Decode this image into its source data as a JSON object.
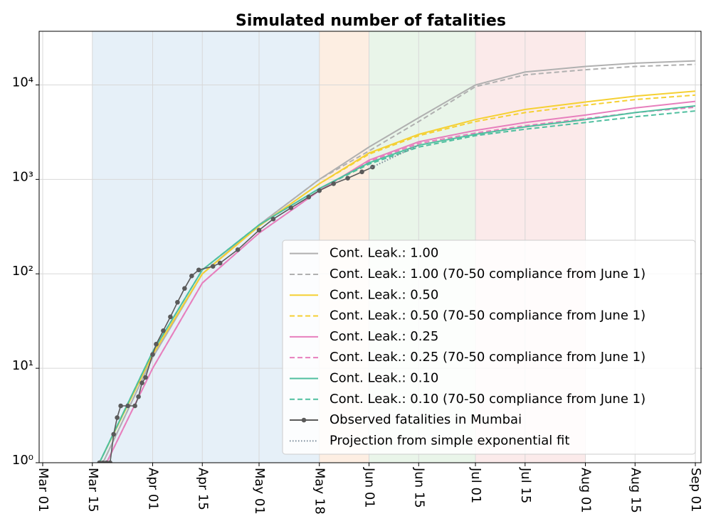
{
  "chart_data": {
    "type": "line",
    "title": "Simulated number of fatalities",
    "log_y": true,
    "grid": true,
    "legend": "lower right",
    "xlim": [
      "Feb 29",
      "Sep 03"
    ],
    "xticks": [
      "Mar 01",
      "Mar 15",
      "Apr 01",
      "Apr 15",
      "May 01",
      "May 18",
      "Jun 01",
      "Jun 15",
      "Jul 01",
      "Jul 15",
      "Aug 01",
      "Aug 15",
      "Sep 01"
    ],
    "ylim": [
      1,
      37000
    ],
    "yticks": [
      {
        "value": 1,
        "label": "10⁰"
      },
      {
        "value": 10,
        "label": "10¹"
      },
      {
        "value": 100,
        "label": "10²"
      },
      {
        "value": 1000,
        "label": "10³"
      },
      {
        "value": 10000,
        "label": "10⁴"
      }
    ],
    "regions": [
      {
        "start": "Mar 15",
        "end": "May 18",
        "color": "#e6f0f8"
      },
      {
        "start": "May 18",
        "end": "Jun 01",
        "color": "#fdeee2"
      },
      {
        "start": "Jun 01",
        "end": "Jul 01",
        "color": "#e9f5e9"
      },
      {
        "start": "Jul 01",
        "end": "Aug 01",
        "color": "#fbeaea"
      }
    ],
    "series": [
      {
        "name": "Cont. Leak.: 1.00",
        "color": "#b0b0b0",
        "linestyle": "solid",
        "x": [
          "Mar 18",
          "Apr 01",
          "Apr 15",
          "May 01",
          "May 18",
          "Jun 01",
          "Jun 15",
          "Jul 01",
          "Jul 15",
          "Aug 01",
          "Aug 15",
          "Sep 01"
        ],
        "values": [
          1,
          13,
          100,
          330,
          1000,
          2200,
          4500,
          10000,
          13700,
          15700,
          17000,
          18000
        ]
      },
      {
        "name": "Cont. Leak.: 1.00 (70-50 compliance from June 1)",
        "color": "#b0b0b0",
        "linestyle": "dashed",
        "x": [
          "Mar 18",
          "Apr 01",
          "Apr 15",
          "May 01",
          "May 18",
          "Jun 01",
          "Jun 15",
          "Jul 01",
          "Jul 15",
          "Aug 01",
          "Aug 15",
          "Sep 01"
        ],
        "values": [
          1,
          13,
          100,
          330,
          1000,
          2000,
          4100,
          9600,
          12800,
          14500,
          15700,
          16500
        ]
      },
      {
        "name": "Cont. Leak.: 0.50",
        "color": "#f5d033",
        "linestyle": "solid",
        "x": [
          "Mar 17",
          "Apr 01",
          "Apr 15",
          "May 01",
          "May 18",
          "Jun 01",
          "Jun 15",
          "Jul 01",
          "Jul 15",
          "Aug 01",
          "Aug 15",
          "Sep 01"
        ],
        "values": [
          1,
          14,
          100,
          320,
          900,
          1900,
          3000,
          4300,
          5500,
          6600,
          7600,
          8600
        ]
      },
      {
        "name": "Cont. Leak.: 0.50 (70-50 compliance from June 1)",
        "color": "#f5d033",
        "linestyle": "dashed",
        "x": [
          "Mar 17",
          "Apr 01",
          "Apr 15",
          "May 01",
          "May 18",
          "Jun 01",
          "Jun 15",
          "Jul 01",
          "Jul 15",
          "Aug 01",
          "Aug 15",
          "Sep 01"
        ],
        "values": [
          1,
          14,
          100,
          320,
          900,
          1850,
          2900,
          4100,
          5100,
          6100,
          7000,
          7800
        ]
      },
      {
        "name": "Cont. Leak.: 0.25",
        "color": "#e77fbd",
        "linestyle": "solid",
        "x": [
          "Mar 19",
          "Apr 01",
          "Apr 15",
          "May 01",
          "May 18",
          "Jun 01",
          "Jun 15",
          "Jul 01",
          "Jul 15",
          "Aug 01",
          "Aug 15",
          "Sep 01"
        ],
        "values": [
          1,
          10,
          80,
          270,
          760,
          1600,
          2500,
          3300,
          4000,
          4800,
          5700,
          6700
        ]
      },
      {
        "name": "Cont. Leak.: 0.25 (70-50 compliance from June 1)",
        "color": "#e77fbd",
        "linestyle": "dashed",
        "x": [
          "Mar 19",
          "Apr 01",
          "Apr 15",
          "May 01",
          "May 18",
          "Jun 01",
          "Jun 15",
          "Jul 01",
          "Jul 15",
          "Aug 01",
          "Aug 15",
          "Sep 01"
        ],
        "values": [
          1,
          10,
          80,
          270,
          760,
          1550,
          2400,
          3100,
          3700,
          4400,
          5100,
          5800
        ]
      },
      {
        "name": "Cont. Leak.: 0.10",
        "color": "#4fbf9f",
        "linestyle": "solid",
        "x": [
          "Mar 17",
          "Apr 01",
          "Apr 15",
          "May 01",
          "May 18",
          "Jun 01",
          "Jun 15",
          "Jul 01",
          "Jul 15",
          "Aug 01",
          "Aug 15",
          "Sep 01"
        ],
        "values": [
          1,
          15,
          110,
          330,
          800,
          1500,
          2300,
          3000,
          3600,
          4300,
          5100,
          6000
        ]
      },
      {
        "name": "Cont. Leak.: 0.10 (70-50 compliance from June 1)",
        "color": "#4fbf9f",
        "linestyle": "dashed",
        "x": [
          "Mar 17",
          "Apr 01",
          "Apr 15",
          "May 01",
          "May 18",
          "Jun 01",
          "Jun 15",
          "Jul 01",
          "Jul 15",
          "Aug 01",
          "Aug 15",
          "Sep 01"
        ],
        "values": [
          1,
          15,
          110,
          330,
          800,
          1450,
          2200,
          2900,
          3400,
          4000,
          4600,
          5300
        ]
      },
      {
        "name": "Observed fatalities in Mumbai",
        "color": "#5a5a5a",
        "linestyle": "solid",
        "marker": "o",
        "x": [
          "Mar 17",
          "Mar 18",
          "Mar 19",
          "Mar 20",
          "Mar 21",
          "Mar 22",
          "Mar 23",
          "Mar 25",
          "Mar 27",
          "Mar 28",
          "Mar 29",
          "Mar 30",
          "Apr 01",
          "Apr 02",
          "Apr 04",
          "Apr 06",
          "Apr 08",
          "Apr 10",
          "Apr 12",
          "Apr 14",
          "Apr 18",
          "Apr 20",
          "Apr 25",
          "May 01",
          "May 05",
          "May 10",
          "May 15",
          "May 18",
          "May 22",
          "May 26",
          "May 30",
          "Jun 02"
        ],
        "values": [
          1,
          1,
          1,
          1,
          2,
          3,
          4,
          4,
          4,
          5,
          7,
          8,
          14,
          18,
          25,
          35,
          50,
          70,
          95,
          110,
          120,
          130,
          180,
          290,
          380,
          500,
          650,
          760,
          900,
          1030,
          1200,
          1350
        ]
      },
      {
        "name": "Projection from simple exponential fit",
        "color": "#7a8a99",
        "linestyle": "dotted",
        "x": [
          "Jun 01",
          "Jun 15"
        ],
        "values": [
          1300,
          2300
        ]
      }
    ]
  }
}
